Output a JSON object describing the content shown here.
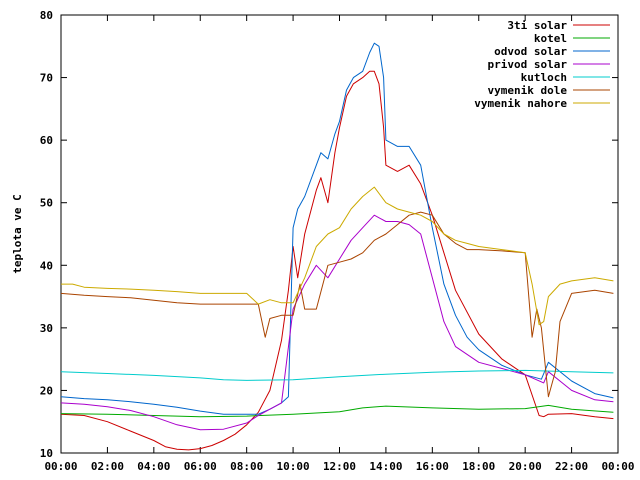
{
  "chart_data": {
    "type": "line",
    "title": "",
    "xlabel": "",
    "ylabel": "teplota ve C",
    "xlim": [
      0,
      24
    ],
    "ylim": [
      10,
      80
    ],
    "x_ticks": [
      "00:00",
      "02:00",
      "04:00",
      "06:00",
      "08:00",
      "10:00",
      "12:00",
      "14:00",
      "16:00",
      "18:00",
      "20:00",
      "22:00",
      "00:00"
    ],
    "y_ticks": [
      10,
      20,
      30,
      40,
      50,
      60,
      70,
      80
    ],
    "grid": false,
    "legend": "top-right",
    "series": [
      {
        "name": "3ti solar",
        "color": "#cc0000",
        "x": [
          0,
          1,
          2,
          3,
          4,
          4.5,
          5,
          5.5,
          6,
          6.5,
          7,
          7.5,
          8,
          8.5,
          9,
          9.5,
          9.8,
          10,
          10.2,
          10.5,
          11,
          11.2,
          11.5,
          11.8,
          12,
          12.3,
          12.6,
          13,
          13.3,
          13.5,
          13.7,
          13.9,
          14,
          14.5,
          15,
          15.5,
          16,
          16.5,
          17,
          18,
          19,
          20,
          20.6,
          20.8,
          21,
          22,
          23,
          23.8
        ],
        "y": [
          16.2,
          16,
          15,
          13.5,
          12,
          11,
          10.6,
          10.5,
          10.7,
          11.2,
          12,
          13,
          14.5,
          16.5,
          20,
          28,
          36,
          43,
          38,
          45,
          52,
          54,
          50,
          58,
          62,
          67,
          69,
          70,
          71,
          71,
          69,
          62,
          56,
          55,
          56,
          53,
          48,
          42,
          36,
          29,
          25,
          22.5,
          16,
          15.8,
          16.2,
          16.3,
          15.8,
          15.5
        ]
      },
      {
        "name": "kotel",
        "color": "#00aa00",
        "x": [
          0,
          2,
          4,
          6,
          8,
          10,
          12,
          13,
          14,
          16,
          18,
          20,
          21,
          22,
          23.8
        ],
        "y": [
          16.3,
          16.2,
          16,
          15.8,
          15.9,
          16.2,
          16.6,
          17.2,
          17.5,
          17.2,
          17,
          17.1,
          17.6,
          17,
          16.5
        ]
      },
      {
        "name": "odvod solar",
        "color": "#0066cc",
        "x": [
          0,
          1,
          2,
          3,
          4,
          5,
          6,
          7,
          8,
          8.5,
          9,
          9.5,
          9.8,
          10,
          10.2,
          10.5,
          11,
          11.2,
          11.5,
          11.8,
          12,
          12.3,
          12.6,
          13,
          13.3,
          13.5,
          13.7,
          13.9,
          14,
          14.5,
          15,
          15.5,
          16,
          16.5,
          17,
          17.5,
          18,
          19,
          20,
          20.7,
          21,
          22,
          23,
          23.8
        ],
        "y": [
          19,
          18.7,
          18.5,
          18.2,
          17.8,
          17.3,
          16.7,
          16.2,
          16.2,
          16.2,
          17,
          18,
          19,
          46,
          49,
          51,
          56,
          58,
          57,
          61,
          63,
          68,
          70,
          71,
          74,
          75.5,
          75,
          70,
          60,
          59,
          59,
          56,
          46,
          37,
          32,
          28.5,
          26.5,
          24,
          22.5,
          21.8,
          24.5,
          21.5,
          19.5,
          18.8
        ]
      },
      {
        "name": "privod solar",
        "color": "#aa00cc",
        "x": [
          0,
          1,
          2,
          3,
          4,
          5,
          6,
          7,
          8,
          8.5,
          9,
          9.5,
          10,
          10.5,
          11,
          11.5,
          12,
          12.5,
          13,
          13.5,
          14,
          14.5,
          15,
          15.5,
          16,
          16.5,
          17,
          18,
          19,
          20,
          20.8,
          21,
          22,
          23,
          23.8
        ],
        "y": [
          18,
          17.8,
          17.4,
          16.8,
          15.8,
          14.5,
          13.7,
          13.8,
          14.8,
          16,
          17,
          18,
          33,
          37,
          40,
          38,
          41,
          44,
          46,
          48,
          47,
          47,
          46.5,
          45,
          38,
          31,
          27,
          24.5,
          23.5,
          22.5,
          21.2,
          23,
          20,
          18.5,
          18.2
        ]
      },
      {
        "name": "kutloch",
        "color": "#00cccc",
        "x": [
          0,
          2,
          4,
          6,
          7,
          8,
          10,
          12,
          14,
          16,
          18,
          20,
          22,
          23.8
        ],
        "y": [
          23,
          22.7,
          22.4,
          22,
          21.7,
          21.6,
          21.7,
          22.2,
          22.6,
          22.9,
          23.1,
          23.2,
          23,
          22.8
        ]
      },
      {
        "name": "vymenik dole",
        "color": "#aa4400",
        "x": [
          0,
          1,
          2,
          3,
          4,
          5,
          6,
          7,
          8,
          8.5,
          8.8,
          9,
          9.5,
          10,
          10.3,
          10.5,
          11,
          11.5,
          12,
          12.5,
          13,
          13.5,
          14,
          14.5,
          15,
          15.5,
          16,
          16.5,
          17,
          17.5,
          18,
          19,
          20,
          20.3,
          20.5,
          20.7,
          21,
          21.3,
          21.5,
          22,
          23,
          23.8
        ],
        "y": [
          35.5,
          35.2,
          35,
          34.8,
          34.4,
          34,
          33.8,
          33.8,
          33.8,
          33.8,
          28.5,
          31.5,
          32,
          32,
          37,
          33,
          33,
          40,
          40.5,
          41,
          42,
          44,
          45,
          46.5,
          48,
          48.5,
          48,
          45,
          43.5,
          42.5,
          42.5,
          42.3,
          42,
          28.5,
          33,
          30,
          19,
          23,
          31,
          35.5,
          36,
          35.5
        ]
      },
      {
        "name": "vymenik nahore",
        "color": "#ccaa00",
        "x": [
          0,
          0.5,
          1,
          2,
          3,
          4,
          5,
          6,
          7,
          8,
          8.5,
          9,
          9.5,
          10,
          10.5,
          11,
          11.5,
          12,
          12.5,
          13,
          13.5,
          14,
          14.5,
          15,
          15.5,
          16,
          16.5,
          17,
          17.5,
          18,
          19,
          20,
          20.3,
          20.6,
          20.8,
          21,
          21.5,
          22,
          23,
          23.8
        ],
        "y": [
          37,
          37,
          36.5,
          36.3,
          36.2,
          36,
          35.8,
          35.5,
          35.5,
          35.5,
          33.8,
          34.5,
          34,
          34,
          38,
          43,
          45,
          46,
          49,
          51,
          52.5,
          50,
          49,
          48.5,
          48,
          47,
          45,
          44,
          43.5,
          43,
          42.5,
          42,
          37,
          30.5,
          31,
          35,
          37,
          37.5,
          38,
          37.5
        ]
      }
    ]
  }
}
